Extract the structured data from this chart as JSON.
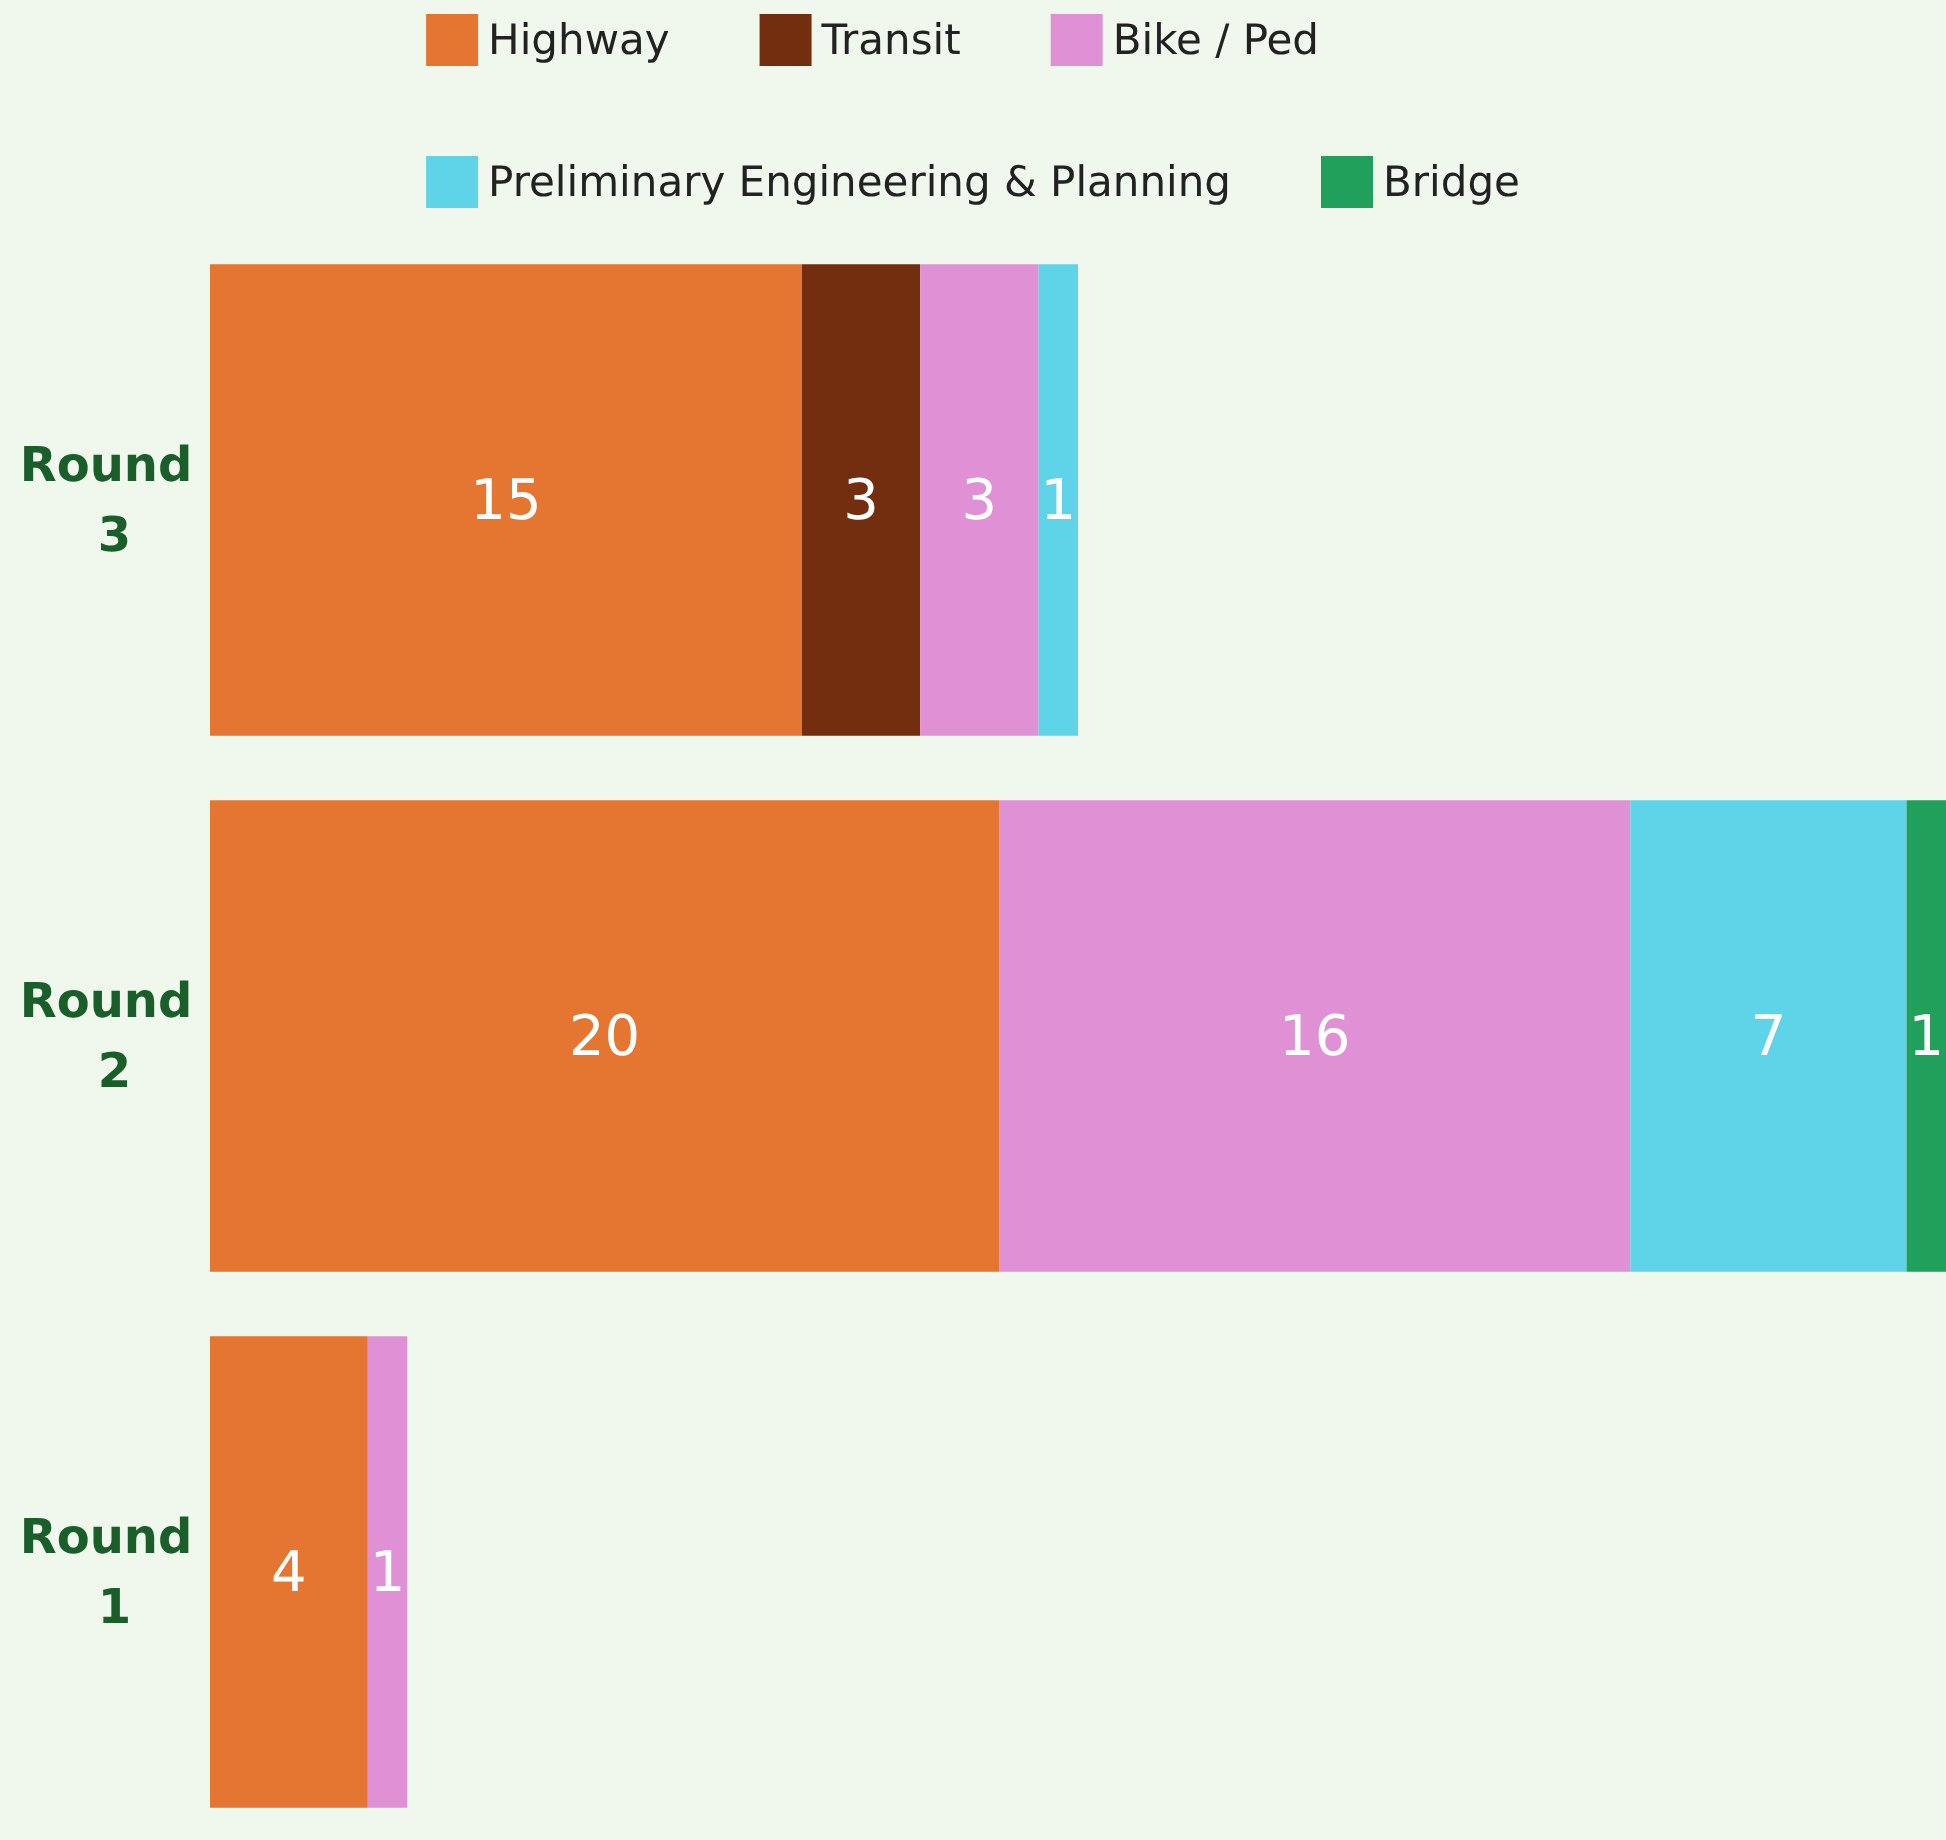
{
  "chart_data": {
    "type": "bar",
    "orientation": "horizontal",
    "stacked": true,
    "legend": "top",
    "data_labels": true,
    "tick_labels": "y",
    "categories": [
      "Round 3",
      "Round 2",
      "Round 1"
    ],
    "series": [
      {
        "name": "Highway",
        "color": "#e57632",
        "values": [
          15,
          20,
          4
        ]
      },
      {
        "name": "Transit",
        "color": "#722e0f",
        "values": [
          3,
          null,
          null
        ]
      },
      {
        "name": "Bike / Ped",
        "color": "#e090d4",
        "values": [
          3,
          16,
          1
        ]
      },
      {
        "name": "Preliminary Engineering & Planning",
        "color": "#5fd3e8",
        "values": [
          1,
          7,
          null
        ]
      },
      {
        "name": "Bridge",
        "color": "#21a05b",
        "values": [
          null,
          1,
          null
        ]
      }
    ]
  }
}
